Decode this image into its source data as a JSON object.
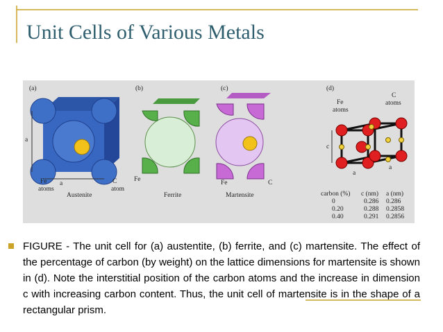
{
  "header": {
    "title": "Unit Cells of Various Metals"
  },
  "figure": {
    "panels": [
      {
        "tag": "(a)",
        "dimension": "a",
        "base": "a",
        "fe": "Fe",
        "fe_sub": "atoms",
        "c": "C",
        "c_sub": "atom",
        "name": "Austenite"
      },
      {
        "tag": "(b)",
        "fe": "Fe",
        "name": "Ferrite"
      },
      {
        "tag": "(c)",
        "fe": "Fe",
        "c": "C",
        "name": "Martensite"
      },
      {
        "tag": "(d)",
        "fe": "Fe",
        "fe_sub": "atoms",
        "c": "C",
        "c_sub": "atoms",
        "height": "c",
        "base": "a",
        "depth": "a"
      }
    ],
    "table": {
      "header": [
        "carbon (%)",
        "c (nm)",
        "a (nm)"
      ],
      "rows": [
        [
          "0",
          "0.286",
          "0.286"
        ],
        [
          "0.20",
          "0.288",
          "0.2858"
        ],
        [
          "0.40",
          "0.291",
          "0.2856"
        ]
      ]
    }
  },
  "caption": "FIGURE - The unit cell for (a) austentite, (b) ferrite, and (c) martensite. The effect of the percentage of carbon (by weight) on the lattice dimensions for martensite is shown in (d). Note the interstitial position of the carbon atoms and the increase in dimension c with increasing carbon content. Thus, the unit cell of martensite is in the shape of a rectangular prism."
}
